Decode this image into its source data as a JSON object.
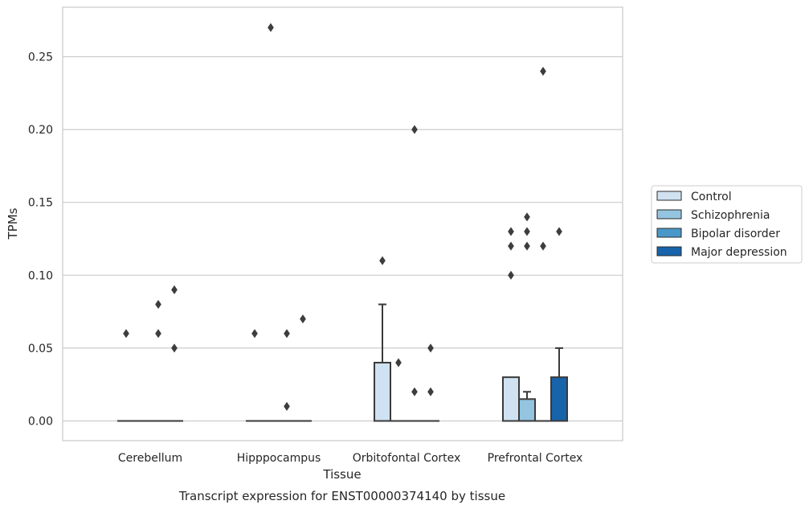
{
  "chart_data": {
    "type": "box",
    "title": "",
    "caption": "Transcript expression for ENST00000374140 by tissue",
    "xlabel": "Tissue",
    "ylabel": "TPMs",
    "ylim": [
      -0.013,
      0.285
    ],
    "yticks": [
      0.0,
      0.05,
      0.1,
      0.15,
      0.2,
      0.25
    ],
    "ytick_labels": [
      "0.00",
      "0.05",
      "0.10",
      "0.15",
      "0.20",
      "0.25"
    ],
    "grid": "horizontal",
    "legend_placement": "right",
    "categories": [
      "Cerebellum",
      "Hipppocampus",
      "Orbitofontal Cortex",
      "Prefrontal Cortex"
    ],
    "series": [
      {
        "name": "Control",
        "color": "#d0e1f2",
        "boxes": [
          {
            "q1": 0.0,
            "median": 0.0,
            "q3": 0.0,
            "whisker_low": 0.0,
            "whisker_high": 0.0,
            "outliers": [
              0.06
            ]
          },
          {
            "q1": 0.0,
            "median": 0.0,
            "q3": 0.0,
            "whisker_low": 0.0,
            "whisker_high": 0.0,
            "outliers": [
              0.06
            ]
          },
          {
            "q1": 0.0,
            "median": 0.0,
            "q3": 0.04,
            "whisker_low": 0.0,
            "whisker_high": 0.08,
            "outliers": [
              0.11
            ]
          },
          {
            "q1": 0.0,
            "median": 0.0,
            "q3": 0.03,
            "whisker_low": 0.0,
            "whisker_high": 0.03,
            "outliers": [
              0.1,
              0.12,
              0.13
            ]
          }
        ]
      },
      {
        "name": "Schizophrenia",
        "color": "#94c4df",
        "boxes": [
          {
            "q1": 0.0,
            "median": 0.0,
            "q3": 0.0,
            "whisker_low": 0.0,
            "whisker_high": 0.0,
            "outliers": []
          },
          {
            "q1": 0.0,
            "median": 0.0,
            "q3": 0.0,
            "whisker_low": 0.0,
            "whisker_high": 0.0,
            "outliers": [
              0.27
            ]
          },
          {
            "q1": 0.0,
            "median": 0.0,
            "q3": 0.0,
            "whisker_low": 0.0,
            "whisker_high": 0.0,
            "outliers": [
              0.04
            ]
          },
          {
            "q1": 0.0,
            "median": 0.0,
            "q3": 0.015,
            "whisker_low": 0.0,
            "whisker_high": 0.02,
            "outliers": [
              0.12,
              0.13,
              0.14
            ]
          }
        ]
      },
      {
        "name": "Bipolar disorder",
        "color": "#4a98c9",
        "boxes": [
          {
            "q1": 0.0,
            "median": 0.0,
            "q3": 0.0,
            "whisker_low": 0.0,
            "whisker_high": 0.0,
            "outliers": [
              0.06,
              0.08
            ]
          },
          {
            "q1": 0.0,
            "median": 0.0,
            "q3": 0.0,
            "whisker_low": 0.0,
            "whisker_high": 0.0,
            "outliers": [
              0.01,
              0.06
            ]
          },
          {
            "q1": 0.0,
            "median": 0.0,
            "q3": 0.0,
            "whisker_low": 0.0,
            "whisker_high": 0.0,
            "outliers": [
              0.2,
              0.02
            ]
          },
          {
            "q1": 0.0,
            "median": 0.0,
            "q3": 0.0,
            "whisker_low": 0.0,
            "whisker_high": 0.0,
            "outliers": [
              0.24,
              0.12
            ]
          }
        ]
      },
      {
        "name": "Major depression",
        "color": "#1764ab",
        "boxes": [
          {
            "q1": 0.0,
            "median": 0.0,
            "q3": 0.0,
            "whisker_low": 0.0,
            "whisker_high": 0.0,
            "outliers": [
              0.05,
              0.09
            ]
          },
          {
            "q1": 0.0,
            "median": 0.0,
            "q3": 0.0,
            "whisker_low": 0.0,
            "whisker_high": 0.0,
            "outliers": [
              0.07
            ]
          },
          {
            "q1": 0.0,
            "median": 0.0,
            "q3": 0.0,
            "whisker_low": 0.0,
            "whisker_high": 0.0,
            "outliers": [
              0.02,
              0.05
            ]
          },
          {
            "q1": 0.0,
            "median": 0.0,
            "q3": 0.03,
            "whisker_low": 0.0,
            "whisker_high": 0.05,
            "outliers": [
              0.13
            ]
          }
        ]
      }
    ]
  }
}
